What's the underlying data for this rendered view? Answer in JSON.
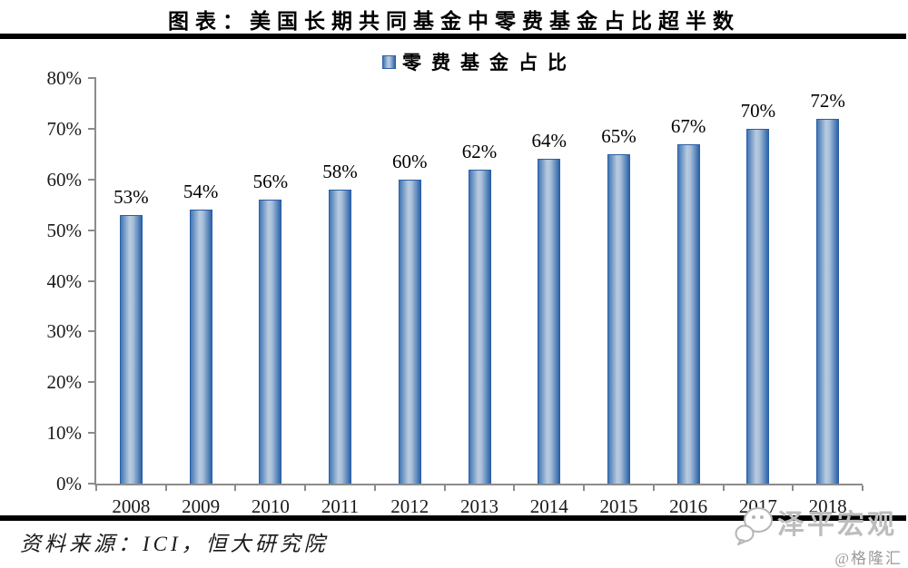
{
  "title": "图表：美国长期共同基金中零费基金占比超半数",
  "legend": {
    "label": "零费基金占比"
  },
  "chart_data": {
    "type": "bar",
    "title": "图表：美国长期共同基金中零费基金占比超半数",
    "series_name": "零费基金占比",
    "categories": [
      "2008",
      "2009",
      "2010",
      "2011",
      "2012",
      "2013",
      "2014",
      "2015",
      "2016",
      "2017",
      "2018"
    ],
    "values": [
      53,
      54,
      56,
      58,
      60,
      62,
      64,
      65,
      67,
      70,
      72
    ],
    "data_labels": [
      "53%",
      "54%",
      "56%",
      "58%",
      "60%",
      "62%",
      "64%",
      "65%",
      "67%",
      "70%",
      "72%"
    ],
    "xlabel": "",
    "ylabel": "",
    "ylim": [
      0,
      80
    ],
    "ytick_step": 10,
    "yticks": [
      "0%",
      "10%",
      "20%",
      "30%",
      "40%",
      "50%",
      "60%",
      "70%",
      "80%"
    ],
    "grid": false,
    "legend_position": "top"
  },
  "source": "资料来源：ICI，恒大研究院",
  "watermark": {
    "name": "泽平宏观",
    "handle": "@格隆汇",
    "icon": "wechat-icon"
  },
  "colors": {
    "bar_left": "#4277b6",
    "bar_mid": "#b9cbdf",
    "bar_mid2": "#a9c0da",
    "bar_right": "#2d64a9",
    "bar_edge": "#2b5fa4",
    "axis": "#8c8c8c",
    "rule": "#000000",
    "watermark_gray": "#bdbdbd",
    "credit_gray": "#999999"
  }
}
